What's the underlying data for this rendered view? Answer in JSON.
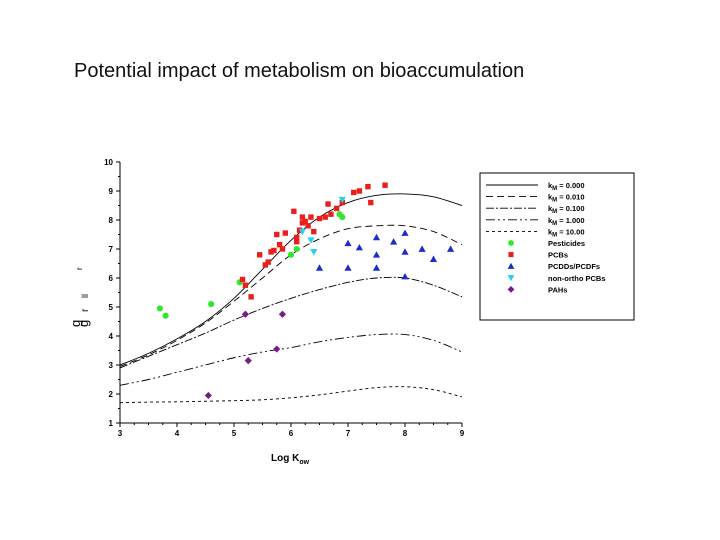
{
  "slide": {
    "title": "Potential impact of metabolism on bioaccumulation"
  },
  "chart_data": {
    "type": "scatter",
    "xlabel_main": "Log K",
    "xlabel_sub": "ow",
    "ylabel_fragments": [
      "g",
      "g",
      "r",
      "ll",
      "r"
    ],
    "xlim": [
      3,
      9
    ],
    "ylim": [
      1,
      10
    ],
    "x_ticks": [
      "3",
      "4",
      "5",
      "6",
      "7",
      "8",
      "9"
    ],
    "y_ticks": [
      "1",
      "2",
      "3",
      "4",
      "5",
      "6",
      "7",
      "8",
      "9",
      "10"
    ],
    "grid": false,
    "legend_position": "right",
    "model_lines": [
      {
        "name": "k",
        "sub": "M",
        "value": " = 0.000",
        "dash": "",
        "x": [
          3.0,
          3.5,
          4.0,
          4.5,
          5.0,
          5.5,
          6.0,
          6.5,
          7.0,
          7.5,
          8.0,
          8.5,
          9.0
        ],
        "y": [
          3.0,
          3.4,
          3.9,
          4.5,
          5.3,
          6.3,
          7.3,
          8.1,
          8.6,
          8.85,
          8.9,
          8.8,
          8.5
        ]
      },
      {
        "name": "k",
        "sub": "M",
        "value": " = 0.010",
        "dash": "7,4",
        "x": [
          3.0,
          3.5,
          4.0,
          4.5,
          5.0,
          5.5,
          6.0,
          6.5,
          7.0,
          7.5,
          8.0,
          8.5,
          9.0
        ],
        "y": [
          2.95,
          3.35,
          3.85,
          4.45,
          5.2,
          6.0,
          6.8,
          7.35,
          7.7,
          7.8,
          7.8,
          7.6,
          7.15
        ]
      },
      {
        "name": "k",
        "sub": "M",
        "value": " = 0.100",
        "dash": "8,2,2,2",
        "x": [
          3.0,
          3.5,
          4.0,
          4.5,
          5.0,
          5.5,
          6.0,
          6.5,
          7.0,
          7.5,
          8.0,
          8.5,
          9.0
        ],
        "y": [
          2.9,
          3.3,
          3.7,
          4.1,
          4.55,
          4.95,
          5.3,
          5.6,
          5.85,
          6.0,
          6.0,
          5.75,
          5.35
        ]
      },
      {
        "name": "k",
        "sub": "M",
        "value": " = 1.000",
        "dash": "9,3,2,3,2,3",
        "x": [
          3.0,
          3.5,
          4.0,
          4.5,
          5.0,
          5.5,
          6.0,
          6.5,
          7.0,
          7.5,
          8.0,
          8.5,
          9.0
        ],
        "y": [
          2.3,
          2.5,
          2.75,
          3.0,
          3.25,
          3.45,
          3.6,
          3.8,
          3.95,
          4.05,
          4.05,
          3.85,
          3.45
        ]
      },
      {
        "name": "k",
        "sub": "M",
        "value": " = 10.00",
        "dash": "3,3",
        "x": [
          3.0,
          3.5,
          4.0,
          4.5,
          5.0,
          5.5,
          6.0,
          6.5,
          7.0,
          7.5,
          8.0,
          8.5,
          9.0
        ],
        "y": [
          1.7,
          1.72,
          1.73,
          1.75,
          1.77,
          1.8,
          1.87,
          1.97,
          2.1,
          2.22,
          2.25,
          2.15,
          1.9
        ]
      }
    ],
    "scatter_series": [
      {
        "name": "Pesticides",
        "marker": "circle",
        "color": "#2ee82e",
        "points": [
          [
            3.7,
            4.95
          ],
          [
            3.8,
            4.7
          ],
          [
            4.6,
            5.1
          ],
          [
            5.1,
            5.85
          ],
          [
            6.0,
            6.8
          ],
          [
            6.1,
            7.0
          ],
          [
            6.85,
            8.2
          ],
          [
            6.9,
            8.1
          ]
        ]
      },
      {
        "name": "PCBs",
        "marker": "square",
        "color": "#e8201c",
        "points": [
          [
            5.15,
            5.95
          ],
          [
            5.2,
            5.75
          ],
          [
            5.3,
            5.35
          ],
          [
            5.45,
            6.8
          ],
          [
            5.55,
            6.45
          ],
          [
            5.6,
            6.55
          ],
          [
            5.65,
            6.9
          ],
          [
            5.7,
            6.95
          ],
          [
            5.75,
            7.5
          ],
          [
            5.8,
            7.15
          ],
          [
            5.85,
            7.0
          ],
          [
            5.9,
            7.55
          ],
          [
            6.05,
            8.3
          ],
          [
            6.1,
            7.25
          ],
          [
            6.1,
            7.4
          ],
          [
            6.15,
            7.65
          ],
          [
            6.2,
            7.9
          ],
          [
            6.2,
            8.1
          ],
          [
            6.25,
            7.95
          ],
          [
            6.3,
            7.8
          ],
          [
            6.35,
            8.1
          ],
          [
            6.4,
            7.6
          ],
          [
            6.5,
            8.05
          ],
          [
            6.6,
            8.1
          ],
          [
            6.65,
            8.55
          ],
          [
            6.7,
            8.2
          ],
          [
            6.8,
            8.4
          ],
          [
            6.9,
            8.6
          ],
          [
            7.1,
            8.95
          ],
          [
            7.2,
            9.0
          ],
          [
            7.35,
            9.15
          ],
          [
            7.4,
            8.6
          ],
          [
            7.65,
            9.2
          ]
        ]
      },
      {
        "name": "PCDDs/PCDFs",
        "marker": "triangle",
        "color": "#1c2ec8",
        "points": [
          [
            6.5,
            6.35
          ],
          [
            7.0,
            7.2
          ],
          [
            7.0,
            6.35
          ],
          [
            7.2,
            7.05
          ],
          [
            7.5,
            7.4
          ],
          [
            7.5,
            6.8
          ],
          [
            7.5,
            6.35
          ],
          [
            7.8,
            7.25
          ],
          [
            8.0,
            7.55
          ],
          [
            8.0,
            6.9
          ],
          [
            8.3,
            7.0
          ],
          [
            8.5,
            6.65
          ],
          [
            8.8,
            7.0
          ],
          [
            8.0,
            6.05
          ]
        ]
      },
      {
        "name": "non-ortho PCBs",
        "marker": "triangle-down",
        "color": "#22d4ea",
        "points": [
          [
            6.2,
            7.6
          ],
          [
            6.35,
            7.3
          ],
          [
            6.4,
            6.9
          ],
          [
            6.9,
            8.7
          ]
        ]
      },
      {
        "name": "PAHs",
        "marker": "diamond",
        "color": "#7a1a8a",
        "points": [
          [
            4.55,
            1.95
          ],
          [
            5.2,
            4.75
          ],
          [
            5.25,
            3.15
          ],
          [
            5.75,
            3.55
          ],
          [
            5.85,
            4.75
          ]
        ]
      }
    ]
  }
}
